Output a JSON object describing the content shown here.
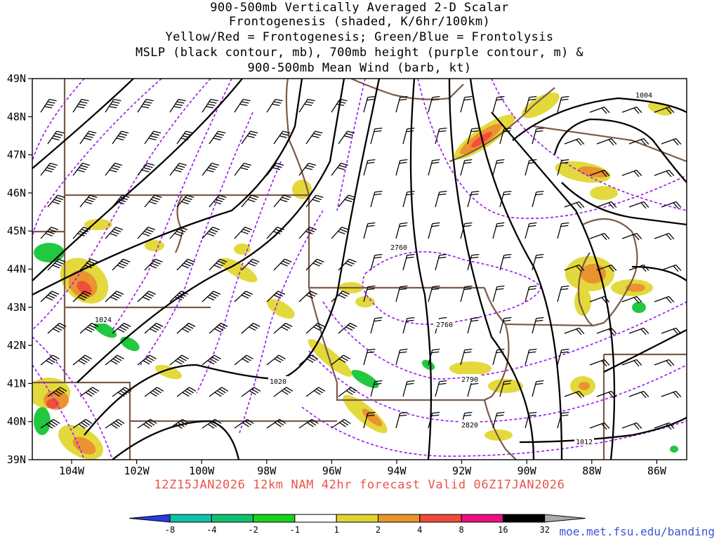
{
  "title": [
    "900-500mb Vertically Averaged 2-D Scalar",
    "Frontogenesis (shaded, K/6hr/100km)",
    "Yellow/Red = Frontogenesis;  Green/Blue = Frontolysis",
    "MSLP (black contour, mb), 700mb height (purple contour, m) &",
    "900-500mb Mean Wind (barb, kt)"
  ],
  "valid_text": "12Z15JAN2026 12km NAM 42hr forecast Valid 06Z17JAN2026",
  "credit": "moe.met.fsu.edu/banding",
  "axes": {
    "lat_labels": [
      "49N",
      "48N",
      "47N",
      "46N",
      "45N",
      "44N",
      "43N",
      "42N",
      "41N",
      "40N",
      "39N"
    ],
    "lon_labels": [
      "104W",
      "102W",
      "100W",
      "98W",
      "96W",
      "94W",
      "92W",
      "90W",
      "88W",
      "86W"
    ]
  },
  "contour_labels": {
    "mslp": [
      "1004",
      "1024",
      "1020",
      "1012"
    ],
    "height": [
      "2760",
      "2760",
      "2790",
      "2820"
    ]
  },
  "colorbar": {
    "labels": [
      "-8",
      "-4",
      "-2",
      "-1",
      "1",
      "2",
      "4",
      "8",
      "16",
      "32"
    ],
    "colors": [
      "#2a3be0",
      "#12c0a8",
      "#10c070",
      "#1ad21a",
      "#ffffff",
      "#e0d232",
      "#e8962a",
      "#f04a3a",
      "#e8127e",
      "#000000"
    ]
  },
  "colors": {
    "mslp_contour": "#000000",
    "height_contour": "#a020f0",
    "borders": "#7a5a48",
    "frontogenesis_weak": "#e3d93c",
    "frontogenesis_mod": "#ea9330",
    "frontogenesis_strong": "#f05038",
    "frontolysis": "#22c840"
  }
}
